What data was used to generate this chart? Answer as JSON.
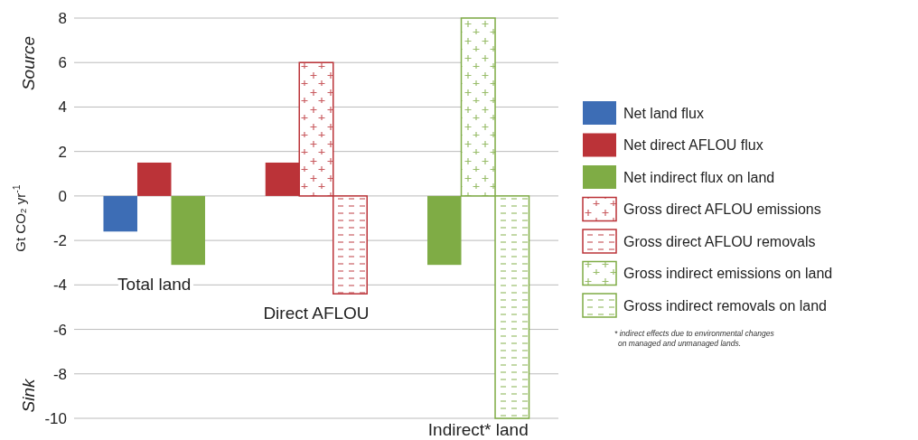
{
  "chart_data": {
    "type": "bar",
    "ylabel": "Gt CO₂ yr$^{-1}$",
    "categories": [
      "Total land",
      "Direct AFLOU",
      "Indirect* land"
    ],
    "series": [
      {
        "name": "Net land flux",
        "color": "#3d6db5",
        "values": [
          -1.6,
          null,
          null
        ]
      },
      {
        "name": "Net direct AFLOU flux",
        "color": "#bb3338",
        "values": [
          1.5,
          1.5,
          null
        ]
      },
      {
        "name": "Net indirect flux on land",
        "color": "#7fac45",
        "values": [
          -3.1,
          null,
          -3.1
        ]
      },
      {
        "name": "Gross direct AFLOU emissions",
        "color": "#bb3338",
        "values": [
          null,
          6.0,
          null
        ]
      },
      {
        "name": "Gross direct AFLOU removals",
        "color": "#bb3338",
        "values": [
          null,
          -4.4,
          null
        ]
      },
      {
        "name": "Gross indirect emissions on land",
        "color": "#7fac45",
        "values": [
          null,
          null,
          8.0
        ]
      },
      {
        "name": "Gross indirect removals on land",
        "color": "#7fac45",
        "values": [
          null,
          null,
          -10.0
        ]
      }
    ],
    "ylim": [
      -10,
      8
    ],
    "yticks": [
      -10,
      -8,
      -6,
      -4,
      -2,
      0,
      2,
      4,
      6,
      8
    ],
    "grid": "y",
    "legend": "right",
    "annotations": [
      "Source",
      "Sink",
      "* indirect effects due to environmental changes\non managed and unmanaged lands."
    ]
  }
}
